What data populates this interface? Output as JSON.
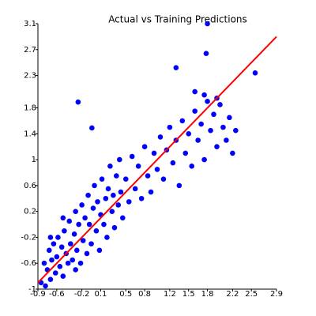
{
  "chart_data": {
    "type": "scatter",
    "title": "Actual vs Training Predictions",
    "xlim": [
      -0.9,
      2.9
    ],
    "ylim": [
      -1.0,
      3.1
    ],
    "xticks": [
      -0.9,
      -0.6,
      -0.2,
      0.1,
      0.5,
      0.8,
      1.2,
      1.5,
      1.8,
      2.2,
      2.5,
      2.9
    ],
    "yticks": [
      -1.0,
      -0.6,
      -0.2,
      0.2,
      0.6,
      1.0,
      1.4,
      1.8,
      2.3,
      2.7,
      3.1
    ],
    "series": [
      {
        "type": "scatter",
        "color": "#0000ff",
        "x": [
          -0.85,
          -0.8,
          -0.78,
          -0.75,
          -0.72,
          -0.7,
          -0.68,
          -0.65,
          -0.62,
          -0.6,
          -0.58,
          -0.55,
          -0.52,
          -0.5,
          -0.48,
          -0.45,
          -0.42,
          -0.4,
          -0.38,
          -0.35,
          -0.32,
          -0.3,
          -0.28,
          -0.25,
          -0.22,
          -0.2,
          -0.18,
          -0.15,
          -0.12,
          -0.1,
          -0.08,
          -0.05,
          -0.02,
          0.0,
          0.03,
          0.05,
          0.08,
          0.1,
          0.12,
          0.15,
          0.18,
          0.2,
          0.22,
          0.25,
          0.28,
          0.3,
          0.32,
          0.35,
          0.38,
          0.4,
          0.42,
          0.45,
          0.5,
          0.55,
          0.6,
          0.65,
          0.7,
          0.75,
          0.8,
          0.85,
          0.9,
          0.95,
          1.0,
          1.05,
          1.1,
          1.15,
          1.2,
          1.25,
          1.3,
          1.35,
          1.4,
          1.45,
          1.5,
          1.55,
          1.6,
          1.65,
          1.7,
          1.75,
          1.8,
          1.85,
          1.9,
          1.95,
          2.0,
          2.05,
          2.1,
          2.15,
          2.2,
          2.25,
          -0.26,
          -0.04,
          1.3,
          1.78,
          1.8,
          2.56,
          -0.7,
          -0.5,
          -0.3,
          1.6,
          1.75,
          1.95
        ],
        "values": [
          -0.9,
          -0.6,
          -0.95,
          -0.7,
          -0.4,
          -0.85,
          -0.55,
          -0.3,
          -0.75,
          -0.5,
          -0.2,
          -0.65,
          -0.35,
          -0.8,
          -0.1,
          -0.45,
          -0.6,
          0.05,
          -0.3,
          -0.55,
          -0.15,
          0.2,
          -0.4,
          0.0,
          -0.6,
          0.3,
          -0.25,
          0.1,
          -0.45,
          0.45,
          0.0,
          -0.3,
          0.25,
          0.6,
          -0.1,
          0.35,
          -0.4,
          0.15,
          0.7,
          0.0,
          0.4,
          -0.2,
          0.55,
          0.9,
          0.2,
          0.45,
          -0.05,
          0.75,
          0.3,
          1.0,
          0.5,
          0.1,
          0.7,
          0.35,
          1.05,
          0.55,
          0.9,
          0.4,
          1.2,
          0.75,
          0.5,
          1.1,
          0.85,
          1.35,
          0.7,
          1.15,
          1.5,
          0.95,
          1.3,
          0.6,
          1.6,
          1.1,
          1.4,
          0.9,
          1.75,
          1.3,
          1.55,
          1.0,
          1.9,
          1.45,
          1.7,
          1.2,
          1.85,
          1.5,
          1.3,
          1.65,
          1.1,
          1.45,
          1.89,
          1.49,
          2.42,
          2.64,
          3.1,
          2.34,
          -0.2,
          0.1,
          -0.7,
          2.05,
          2.0,
          1.95
        ]
      },
      {
        "type": "line",
        "color": "#ff0000",
        "x": [
          -0.9,
          2.9
        ],
        "values": [
          -0.9,
          2.9
        ]
      }
    ]
  }
}
